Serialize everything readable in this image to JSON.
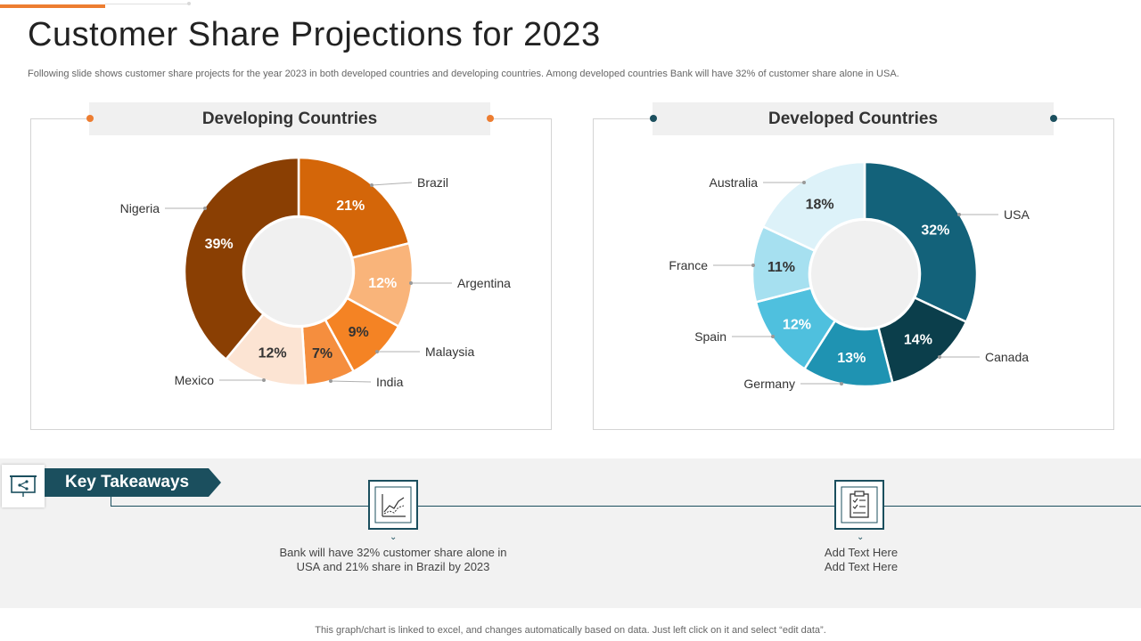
{
  "page": {
    "title": "Customer Share Projections for 2023",
    "subtitle": "Following slide shows customer share projects for the year 2023 in both developed countries and developing countries. Among developed countries Bank will have 32% of customer share alone in USA.",
    "footer": "This graph/chart is linked to excel, and changes automatically based on data. Just left click on it and select “edit data”."
  },
  "colors": {
    "accent": "#ED7D31",
    "teal_dark": "#1B4F5E"
  },
  "chart_data": [
    {
      "type": "pie",
      "title": "Developing Countries",
      "categories": [
        "Brazil",
        "Argentina",
        "Malaysia",
        "India",
        "Mexico",
        "Nigeria"
      ],
      "values": [
        21,
        12,
        9,
        7,
        12,
        39
      ],
      "data_labels": [
        "21%",
        "12%",
        "9%",
        "7%",
        "12%",
        "39%"
      ],
      "colors": [
        "#D46609",
        "#F9B47A",
        "#F48324",
        "#F58E3E",
        "#FCE4D3",
        "#8A3F03"
      ]
    },
    {
      "type": "pie",
      "title": "Developed Countries",
      "categories": [
        "USA",
        "Canada",
        "Germany",
        "Spain",
        "France",
        "Australia"
      ],
      "values": [
        32,
        14,
        13,
        12,
        11,
        18
      ],
      "data_labels": [
        "32%",
        "14%",
        "13%",
        "12%",
        "11%",
        "18%"
      ],
      "colors": [
        "#13627A",
        "#0B3E4B",
        "#1F93B2",
        "#4FC0DE",
        "#A6E0F0",
        "#DDF2F9"
      ]
    }
  ],
  "takeaways": {
    "heading": "Key Takeaways",
    "items": [
      {
        "icon": "line-chart-icon",
        "text_line1": "Bank will have 32% customer share alone in",
        "text_line2": "USA and 21% share in Brazil by 2023"
      },
      {
        "icon": "clipboard-checklist-icon",
        "text_line1": "Add Text Here",
        "text_line2": "Add Text Here"
      }
    ]
  }
}
